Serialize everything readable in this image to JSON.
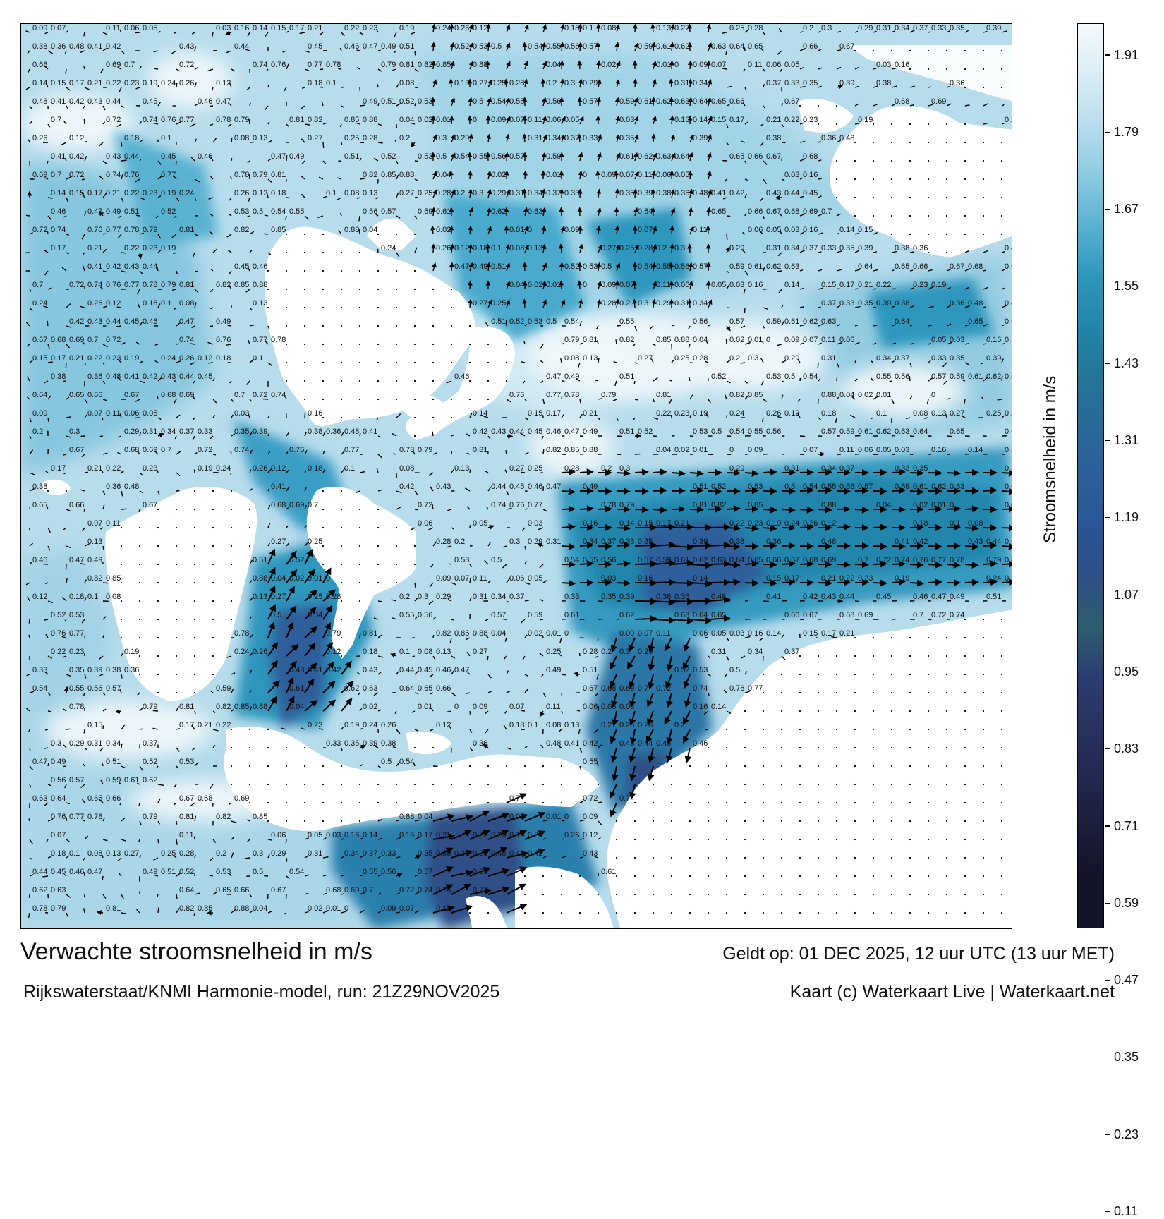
{
  "title": "Verwachte stroomsnelheid in m/s",
  "subtitle": "Rijkswaterstaat/KNMI Harmonie-model, run: 21Z29NOV2025",
  "valid_time": "Geldt op: 01 DEC 2025, 12 uur UTC (13 uur MET)",
  "credit": "Kaart (c) Waterkaart Live | Waterkaart.net",
  "colorbar": {
    "label": "Stroomsnelheid in m/s",
    "ticks": [
      "1.91",
      "1.79",
      "1.67",
      "1.55",
      "1.43",
      "1.31",
      "1.19",
      "1.07",
      "0.95",
      "0.83",
      "0.71",
      "0.59",
      "0.47",
      "0.35",
      "0.23",
      "0.11"
    ],
    "colors": [
      "#f3f9fc",
      "#daedf5",
      "#b9dded",
      "#8ccbe0",
      "#5ab2d1",
      "#2f97be",
      "#2385ab",
      "#237599",
      "#2a6a9a",
      "#2d5e9b",
      "#2b5597",
      "#2f4f87",
      "#2d5e6e",
      "#2b3d70",
      "#28325f",
      "#222850",
      "#1b1d3a",
      "#12142a"
    ]
  },
  "speed_labels": [
    {
      "v": "0.09"
    },
    {
      "v": "0.07"
    },
    {
      "v": "0.11"
    },
    {
      "v": "0.06"
    },
    {
      "v": "0.05"
    },
    {
      "v": "0.03"
    },
    {
      "v": "0.16"
    },
    {
      "v": "0.14"
    },
    {
      "v": "0.15"
    },
    {
      "v": "0.17"
    },
    {
      "v": "0.21"
    },
    {
      "v": "0.22"
    },
    {
      "v": "0.23"
    },
    {
      "v": "0.19"
    },
    {
      "v": "0.24"
    },
    {
      "v": "0.26"
    },
    {
      "v": "0.12"
    },
    {
      "v": "0.18"
    },
    {
      "v": "0.1"
    },
    {
      "v": "0.08"
    },
    {
      "v": "0.13"
    },
    {
      "v": "0.27"
    },
    {
      "v": "0.25"
    },
    {
      "v": "0.28"
    },
    {
      "v": "0.2"
    },
    {
      "v": "0.3"
    },
    {
      "v": "0.29"
    },
    {
      "v": "0.31"
    },
    {
      "v": "0.34"
    },
    {
      "v": "0.37"
    },
    {
      "v": "0.33"
    },
    {
      "v": "0.35"
    },
    {
      "v": "0.39"
    },
    {
      "v": "0.38"
    },
    {
      "v": "0.36"
    },
    {
      "v": "0.48"
    },
    {
      "v": "0.41"
    },
    {
      "v": "0.42"
    },
    {
      "v": "0.43"
    },
    {
      "v": "0.44"
    },
    {
      "v": "0.45"
    },
    {
      "v": "0.46"
    },
    {
      "v": "0.47"
    },
    {
      "v": "0.49"
    },
    {
      "v": "0.51"
    },
    {
      "v": "0.52"
    },
    {
      "v": "0.53"
    },
    {
      "v": "0.5"
    },
    {
      "v": "0.54"
    },
    {
      "v": "0.55"
    },
    {
      "v": "0.56"
    },
    {
      "v": "0.57"
    },
    {
      "v": "0.59"
    },
    {
      "v": "0.61"
    },
    {
      "v": "0.62"
    },
    {
      "v": "0.63"
    },
    {
      "v": "0.64"
    },
    {
      "v": "0.65"
    },
    {
      "v": "0.66"
    },
    {
      "v": "0.67"
    },
    {
      "v": "0.68"
    },
    {
      "v": "0.69"
    },
    {
      "v": "0.7"
    },
    {
      "v": "0.72"
    },
    {
      "v": "0.74"
    },
    {
      "v": "0.76"
    },
    {
      "v": "0.77"
    },
    {
      "v": "0.78"
    },
    {
      "v": "0.79"
    },
    {
      "v": "0.81"
    },
    {
      "v": "0.82"
    },
    {
      "v": "0.85"
    },
    {
      "v": "0.88"
    },
    {
      "v": "0.04"
    },
    {
      "v": "0.02"
    },
    {
      "v": "0.01"
    },
    {
      "v": "0"
    }
  ]
}
